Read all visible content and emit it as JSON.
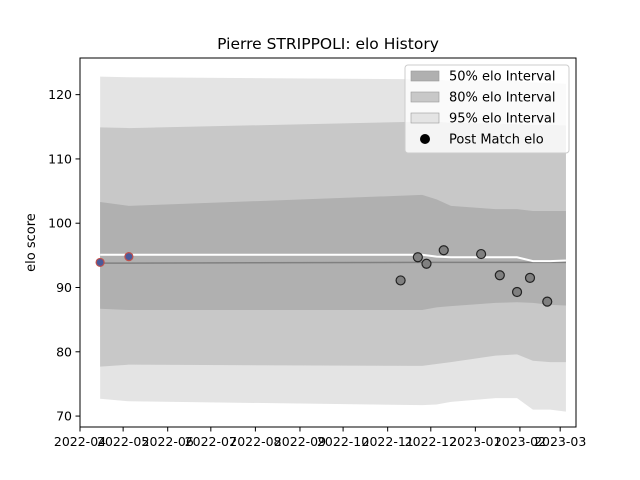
{
  "chart_data": {
    "type": "area",
    "title": "Pierre STRIPPOLI: elo History",
    "xlabel": "",
    "ylabel": "elo score",
    "ylim": [
      68.3,
      125.7
    ],
    "xlim": [
      "2022-04-01",
      "2023-03-12"
    ],
    "x_ticks": [
      "2022-04",
      "2022-05",
      "2022-06",
      "2022-07",
      "2022-08",
      "2022-09",
      "2022-10",
      "2022-11",
      "2022-12",
      "2023-01",
      "2023-02",
      "2023-03"
    ],
    "y_ticks": [
      70,
      80,
      90,
      100,
      110,
      120
    ],
    "grid": false,
    "legend_placement": "top-right",
    "legend": [
      {
        "label": "50% elo Interval",
        "kind": "patch",
        "color": "#b0b0b0"
      },
      {
        "label": "80% elo Interval",
        "kind": "patch",
        "color": "#c8c8c8"
      },
      {
        "label": "95% elo Interval",
        "kind": "patch",
        "color": "#e4e4e4"
      },
      {
        "label": "Post Match elo",
        "kind": "marker",
        "color": "#000000"
      }
    ],
    "band_x": [
      "2022-04-15",
      "2022-05-05",
      "2022-11-25",
      "2022-12-05",
      "2022-12-15",
      "2023-01-15",
      "2023-01-30",
      "2023-02-10",
      "2023-02-22",
      "2023-03-05"
    ],
    "bands": [
      {
        "name": "95% elo Interval",
        "color": "#e4e4e4",
        "upper": [
          122.8,
          122.7,
          122.4,
          122.3,
          122.2,
          122.2,
          122.1,
          121.9,
          121.8,
          121.7
        ],
        "lower": [
          72.7,
          72.3,
          71.7,
          71.8,
          72.2,
          72.8,
          72.8,
          71.0,
          71.0,
          70.7
        ]
      },
      {
        "name": "80% elo Interval",
        "color": "#c8c8c8",
        "upper": [
          114.9,
          114.8,
          115.8,
          115.8,
          115.6,
          115.5,
          115.4,
          115.3,
          115.3,
          115.2
        ],
        "lower": [
          77.7,
          78.0,
          77.8,
          78.1,
          78.4,
          79.4,
          79.6,
          78.6,
          78.4,
          78.4
        ]
      },
      {
        "name": "50% elo Interval",
        "color": "#b0b0b0",
        "upper": [
          103.3,
          102.7,
          104.4,
          103.7,
          102.7,
          102.2,
          102.2,
          101.9,
          101.9,
          101.9
        ],
        "lower": [
          86.7,
          86.5,
          86.5,
          86.9,
          87.1,
          87.6,
          87.7,
          87.6,
          87.3,
          87.2
        ]
      }
    ],
    "mean_line": {
      "color": "#808080",
      "y": [
        93.8,
        93.8,
        93.9,
        93.9,
        93.9,
        93.9,
        93.9,
        93.9,
        93.9,
        93.9
      ]
    },
    "rating_line": {
      "color": "#ffffff",
      "x": [
        "2022-04-15",
        "2022-05-05",
        "2022-11-25",
        "2022-12-05",
        "2022-12-15",
        "2023-01-15",
        "2023-01-30",
        "2023-02-10",
        "2023-02-22",
        "2023-03-05"
      ],
      "y": [
        95.1,
        95.1,
        95.1,
        94.8,
        94.7,
        94.7,
        94.7,
        94.1,
        94.1,
        94.2
      ]
    },
    "series": [
      {
        "name": "Post Match elo",
        "marker": "circle",
        "color": "#808080",
        "points": [
          {
            "x": "2022-11-10",
            "y": 91.1
          },
          {
            "x": "2022-11-22",
            "y": 94.7
          },
          {
            "x": "2022-11-28",
            "y": 93.7
          },
          {
            "x": "2022-12-10",
            "y": 95.8
          },
          {
            "x": "2023-01-05",
            "y": 95.2
          },
          {
            "x": "2023-01-18",
            "y": 91.9
          },
          {
            "x": "2023-01-30",
            "y": 89.3
          },
          {
            "x": "2023-02-08",
            "y": 91.5
          },
          {
            "x": "2023-02-20",
            "y": 87.8
          }
        ]
      },
      {
        "marker": "circle",
        "color": "#4a5a9a",
        "points": [
          {
            "x": "2022-04-15",
            "y": 93.9
          },
          {
            "x": "2022-05-05",
            "y": 94.8
          }
        ]
      }
    ]
  }
}
